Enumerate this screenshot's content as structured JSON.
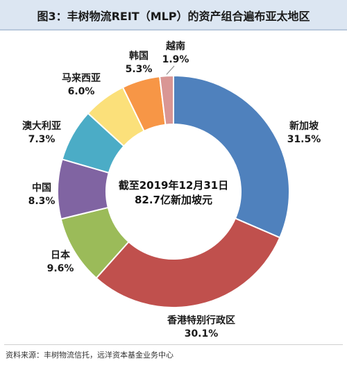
{
  "header": {
    "title": "图3：丰树物流REIT（MLP）的资产组合遍布亚太地区"
  },
  "footer": {
    "source": "资料来源：丰树物流信托，远洋资本基金业务中心"
  },
  "chart_data": {
    "type": "pie",
    "donut": true,
    "title": "图3：丰树物流REIT（MLP）的资产组合遍布亚太地区",
    "center_text": [
      "截至2019年12月31日",
      "82.7亿新加坡元"
    ],
    "slices": [
      {
        "name": "新加坡",
        "value": 31.5,
        "label": "31.5%",
        "color": "#4f81bd"
      },
      {
        "name": "香港特别行政区",
        "value": 30.1,
        "label": "30.1%",
        "color": "#c0504d"
      },
      {
        "name": "日本",
        "value": 9.6,
        "label": "9.6%",
        "color": "#9bbb59"
      },
      {
        "name": "中国",
        "value": 8.3,
        "label": "8.3%",
        "color": "#8064a2"
      },
      {
        "name": "澳大利亚",
        "value": 7.3,
        "label": "7.3%",
        "color": "#4bacc6"
      },
      {
        "name": "马来西亚",
        "value": 6.0,
        "label": "6.0%",
        "color": "#fbe07a"
      },
      {
        "name": "韩国",
        "value": 5.3,
        "label": "5.3%",
        "color": "#f79646"
      },
      {
        "name": "越南",
        "value": 1.9,
        "label": "1.9%",
        "color": "#d99694"
      }
    ]
  }
}
